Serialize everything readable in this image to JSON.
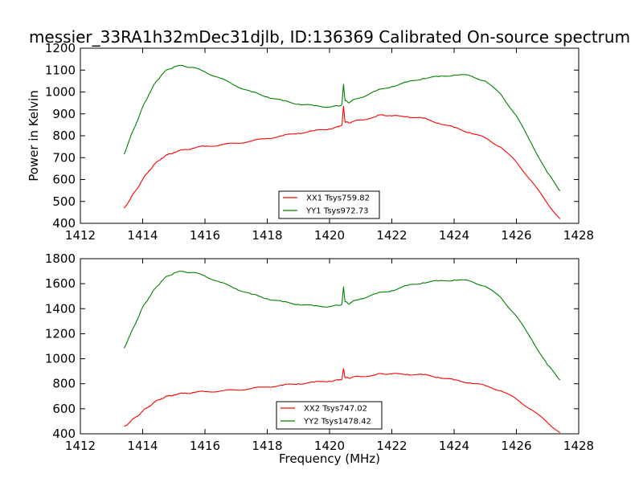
{
  "chart_data": [
    {
      "type": "line",
      "title": "messier_33RA1h32mDec31djlb, ID:136369 Calibrated On-source spectrum",
      "xlabel": "",
      "ylabel": "Power in Kelvin",
      "xlim": [
        1412,
        1428
      ],
      "ylim": [
        400,
        1200
      ],
      "xticks": [
        1412,
        1414,
        1416,
        1418,
        1420,
        1422,
        1424,
        1426,
        1428
      ],
      "yticks": [
        400,
        500,
        600,
        700,
        800,
        900,
        1000,
        1100,
        1200
      ],
      "grid": false,
      "legend_position": "lower-center",
      "series": [
        {
          "name": "XX1 Tsys759.82",
          "color": "#ff0000",
          "x": [
            1413.4,
            1413.6,
            1413.8,
            1414.0,
            1414.2,
            1414.4,
            1414.6,
            1414.8,
            1415.0,
            1415.3,
            1415.6,
            1416.0,
            1416.5,
            1417.0,
            1417.5,
            1418.0,
            1418.5,
            1419.0,
            1419.5,
            1420.0,
            1420.3,
            1420.4,
            1420.45,
            1420.5,
            1420.6,
            1420.7,
            1421.0,
            1421.5,
            1421.7,
            1422.0,
            1422.5,
            1423.0,
            1423.5,
            1424.0,
            1424.5,
            1425.0,
            1425.5,
            1426.0,
            1426.5,
            1427.0,
            1427.4
          ],
          "y": [
            470,
            510,
            555,
            600,
            640,
            672,
            697,
            713,
            724,
            735,
            743,
            752,
            758,
            766,
            776,
            788,
            800,
            812,
            822,
            832,
            840,
            852,
            935,
            862,
            860,
            862,
            872,
            888,
            897,
            890,
            888,
            880,
            858,
            838,
            815,
            790,
            748,
            680,
            590,
            490,
            420
          ]
        },
        {
          "name": "YY1 Tsys972.73",
          "color": "#008000",
          "x": [
            1413.4,
            1413.6,
            1413.8,
            1414.0,
            1414.2,
            1414.4,
            1414.6,
            1414.8,
            1415.0,
            1415.3,
            1415.6,
            1416.0,
            1416.5,
            1417.0,
            1417.5,
            1418.0,
            1418.5,
            1419.0,
            1419.5,
            1420.0,
            1420.3,
            1420.4,
            1420.45,
            1420.5,
            1420.6,
            1420.7,
            1421.0,
            1421.5,
            1422.0,
            1422.5,
            1423.0,
            1423.5,
            1424.0,
            1424.5,
            1425.0,
            1425.5,
            1426.0,
            1426.5,
            1427.0,
            1427.4
          ],
          "y": [
            715,
            790,
            860,
            930,
            990,
            1040,
            1078,
            1102,
            1115,
            1120,
            1112,
            1092,
            1062,
            1028,
            1000,
            978,
            960,
            945,
            937,
            932,
            935,
            945,
            1035,
            960,
            952,
            958,
            975,
            1005,
            1025,
            1045,
            1062,
            1070,
            1078,
            1075,
            1050,
            990,
            890,
            760,
            630,
            548
          ]
        }
      ]
    },
    {
      "type": "line",
      "title": "",
      "xlabel": "Frequency (MHz)",
      "ylabel": "",
      "xlim": [
        1412,
        1428
      ],
      "ylim": [
        400,
        1800
      ],
      "xticks": [
        1412,
        1414,
        1416,
        1418,
        1420,
        1422,
        1424,
        1426,
        1428
      ],
      "yticks": [
        400,
        600,
        800,
        1000,
        1200,
        1400,
        1600,
        1800
      ],
      "grid": false,
      "legend_position": "lower-center",
      "series": [
        {
          "name": "XX2 Tsys747.02",
          "color": "#ff0000",
          "x": [
            1413.4,
            1413.6,
            1413.8,
            1414.0,
            1414.2,
            1414.4,
            1414.6,
            1414.8,
            1415.0,
            1415.3,
            1415.6,
            1416.0,
            1416.5,
            1417.0,
            1417.5,
            1418.0,
            1418.5,
            1419.0,
            1419.5,
            1420.0,
            1420.3,
            1420.4,
            1420.45,
            1420.5,
            1420.6,
            1420.7,
            1421.0,
            1421.5,
            1421.7,
            1422.0,
            1422.5,
            1423.0,
            1423.5,
            1424.0,
            1424.5,
            1425.0,
            1425.5,
            1426.0,
            1426.5,
            1427.0,
            1427.4
          ],
          "y": [
            460,
            495,
            538,
            580,
            620,
            655,
            683,
            700,
            712,
            722,
            730,
            737,
            742,
            750,
            762,
            775,
            788,
            800,
            812,
            822,
            828,
            840,
            920,
            848,
            846,
            850,
            858,
            872,
            882,
            878,
            876,
            872,
            852,
            830,
            808,
            785,
            745,
            678,
            590,
            490,
            408
          ]
        },
        {
          "name": "YY2 Tsys1478.42",
          "color": "#008000",
          "x": [
            1413.4,
            1413.6,
            1413.8,
            1414.0,
            1414.2,
            1414.4,
            1414.6,
            1414.8,
            1415.0,
            1415.3,
            1415.6,
            1416.0,
            1416.5,
            1417.0,
            1417.5,
            1418.0,
            1418.5,
            1419.0,
            1419.5,
            1420.0,
            1420.3,
            1420.4,
            1420.45,
            1420.5,
            1420.6,
            1420.7,
            1421.0,
            1421.5,
            1422.0,
            1422.5,
            1423.0,
            1423.5,
            1424.0,
            1424.5,
            1425.0,
            1425.5,
            1426.0,
            1426.5,
            1427.0,
            1427.4
          ],
          "y": [
            1085,
            1190,
            1300,
            1410,
            1490,
            1560,
            1620,
            1660,
            1685,
            1698,
            1690,
            1662,
            1610,
            1560,
            1515,
            1480,
            1455,
            1435,
            1422,
            1418,
            1425,
            1440,
            1575,
            1455,
            1440,
            1450,
            1480,
            1520,
            1545,
            1585,
            1608,
            1622,
            1630,
            1622,
            1580,
            1490,
            1340,
            1150,
            950,
            830
          ]
        }
      ]
    }
  ]
}
